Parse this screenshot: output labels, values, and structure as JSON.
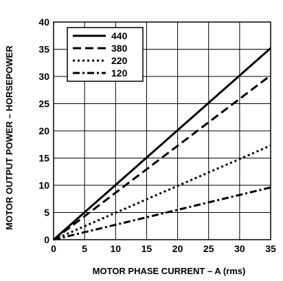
{
  "chart_data": {
    "type": "line",
    "title": "",
    "xlabel": "MOTOR PHASE CURRENT – A (rms)",
    "ylabel": "MOTOR OUTPUT POWER – HORSEPOWER",
    "xlim": [
      0,
      35
    ],
    "ylim": [
      0,
      40
    ],
    "x_ticks": [
      0,
      5,
      10,
      15,
      20,
      25,
      30,
      35
    ],
    "y_ticks": [
      0,
      5,
      10,
      15,
      20,
      25,
      30,
      35,
      40
    ],
    "grid": true,
    "legend_position": "top-left",
    "series": [
      {
        "name": "440",
        "style": "solid",
        "x": [
          0,
          35
        ],
        "y": [
          0,
          35.2
        ]
      },
      {
        "name": "380",
        "style": "dashed",
        "x": [
          0,
          35
        ],
        "y": [
          0,
          30.2
        ]
      },
      {
        "name": "220",
        "style": "dotted",
        "x": [
          0,
          35
        ],
        "y": [
          0,
          17.3
        ]
      },
      {
        "name": "120",
        "style": "dash-dot",
        "x": [
          0,
          35
        ],
        "y": [
          0,
          9.6
        ]
      }
    ]
  }
}
